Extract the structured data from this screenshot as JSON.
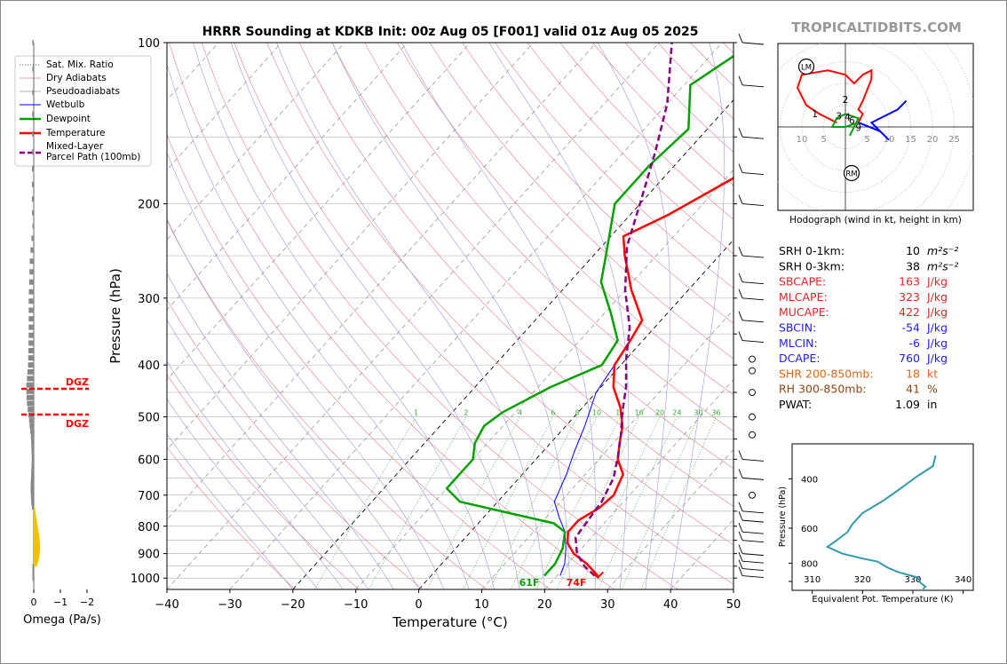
{
  "title": "HRRR Sounding at KDKB Init: 00z Aug 05 [F001] valid 01z Aug 05 2025",
  "watermark": "TROPICALTIDBITS.COM",
  "skewt": {
    "xlabel": "Temperature (°C)",
    "ylabel": "Pressure (hPa)",
    "pressure_ticks": [
      "100",
      "200",
      "300",
      "400",
      "500",
      "600",
      "700",
      "800",
      "900",
      "1000"
    ],
    "temp_ticks": [
      "−40",
      "−30",
      "−20",
      "−10",
      "0",
      "10",
      "20",
      "30",
      "40",
      "50"
    ],
    "mixing_ratio_labels": [
      "1",
      "2",
      "4",
      "6",
      "8",
      "10",
      "13",
      "16",
      "20",
      "24",
      "30",
      "36"
    ],
    "legend": [
      "Sat. Mix. Ratio",
      "Dry Adiabats",
      "Pseudoadiabats",
      "Wetbulb",
      "Dewpoint",
      "Temperature",
      "Mixed-Layer\nParcel Path (100mb)"
    ],
    "surface_dewpoint_label": "61F",
    "surface_temp_label": "74F",
    "colors": {
      "temperature": "#ff0000",
      "dewpoint": "#00a000",
      "wetbulb": "#0000ff",
      "parcel": "#800080",
      "dgz": "#ff0000"
    }
  },
  "omega": {
    "xlabel": "Omega (Pa/s)",
    "ticks": [
      "0",
      "−1",
      "−2"
    ],
    "dgz_label": "DGZ"
  },
  "hodograph": {
    "caption": "Hodograph (wind in kt, height in km)",
    "ring_labels_left": [
      "10",
      "5"
    ],
    "ring_labels_right": [
      "5",
      "10",
      "15",
      "20",
      "25"
    ],
    "height_labels": [
      "1",
      "2",
      "3",
      "4",
      "6",
      "9"
    ],
    "lm_label": "LM",
    "rm_label": "RM"
  },
  "parameters": [
    {
      "label": "SRH 0-1km:",
      "value": "10",
      "unit": "m²s⁻²",
      "color": "#000000"
    },
    {
      "label": "SRH 0-3km:",
      "value": "38",
      "unit": "m²s⁻²",
      "color": "#000000"
    },
    {
      "label": "SBCAPE:",
      "value": "163",
      "unit": "J/kg",
      "color": "#d62728"
    },
    {
      "label": "MLCAPE:",
      "value": "323",
      "unit": "J/kg",
      "color": "#d62728"
    },
    {
      "label": "MUCAPE:",
      "value": "422",
      "unit": "J/kg",
      "color": "#d62728"
    },
    {
      "label": "SBCIN:",
      "value": "-54",
      "unit": "J/kg",
      "color": "#1f1fd6"
    },
    {
      "label": "MLCIN:",
      "value": "-6",
      "unit": "J/kg",
      "color": "#1f1fd6"
    },
    {
      "label": "DCAPE:",
      "value": "760",
      "unit": "J/kg",
      "color": "#1f1fd6"
    },
    {
      "label": "SHR 200-850mb:",
      "value": "18",
      "unit": "kt",
      "color": "#d2691e"
    },
    {
      "label": "RH 300-850mb:",
      "value": "41",
      "unit": "%",
      "color": "#8b4513"
    },
    {
      "label": "PWAT:",
      "value": "1.09",
      "unit": "in",
      "color": "#000000"
    }
  ],
  "theta_e": {
    "xlabel": "Equivalent Pot. Temperature (K)",
    "ylabel": "Pressure (hPa)",
    "xticks": [
      "310",
      "320",
      "330",
      "340"
    ],
    "yticks": [
      "400",
      "600",
      "800"
    ],
    "color": "#3399aa"
  },
  "chart_data": [
    {
      "type": "line",
      "title": "HRRR Sounding at KDKB Init: 00z Aug 05 [F001] valid 01z Aug 05 2025",
      "xlabel": "Temperature (°C)",
      "ylabel": "Pressure (hPa)",
      "ylim": [
        1050,
        100
      ],
      "xlim": [
        -40,
        50
      ],
      "series": [
        {
          "name": "Temperature",
          "points": [
            [
              26.5,
              990
            ],
            [
              23,
              940
            ],
            [
              19.5,
              900
            ],
            [
              17,
              860
            ],
            [
              15.5,
              820
            ],
            [
              15.5,
              780
            ],
            [
              17,
              740
            ],
            [
              17.5,
              700
            ],
            [
              16,
              640
            ],
            [
              13,
              600
            ],
            [
              11,
              560
            ],
            [
              9,
              520
            ],
            [
              6,
              480
            ],
            [
              2,
              440
            ],
            [
              -1,
              400
            ],
            [
              -2,
              360
            ],
            [
              -3,
              330
            ],
            [
              -9,
              290
            ],
            [
              -15,
              250
            ],
            [
              -18,
              230
            ],
            [
              -14,
              210
            ],
            [
              -9,
              180
            ],
            [
              -6,
              160
            ],
            [
              -4,
              140
            ],
            [
              -3,
              120
            ],
            [
              -2,
              100
            ]
          ]
        },
        {
          "name": "Dewpoint",
          "points": [
            [
              18,
              990
            ],
            [
              18,
              940
            ],
            [
              17,
              880
            ],
            [
              15,
              820
            ],
            [
              12,
              790
            ],
            [
              -6,
              720
            ],
            [
              -10,
              680
            ],
            [
              -10,
              640
            ],
            [
              -10,
              600
            ],
            [
              -12,
              560
            ],
            [
              -13,
              520
            ],
            [
              -12,
              490
            ],
            [
              -8,
              440
            ],
            [
              -3,
              400
            ],
            [
              -4,
              360
            ],
            [
              -9,
              320
            ],
            [
              -15,
              280
            ],
            [
              -18,
              250
            ],
            [
              -24,
              200
            ],
            [
              -24,
              170
            ],
            [
              -23,
              145
            ],
            [
              -29,
              120
            ],
            [
              -25,
              100
            ]
          ]
        },
        {
          "name": "Wetbulb",
          "points": [
            [
              20.5,
              990
            ],
            [
              19.5,
              940
            ],
            [
              17.5,
              880
            ],
            [
              15,
              820
            ],
            [
              12,
              770
            ],
            [
              9,
              720
            ],
            [
              7,
              640
            ],
            [
              5,
              580
            ],
            [
              3,
              520
            ],
            [
              0,
              450
            ],
            [
              -1,
              400
            ],
            [
              -2,
              360
            ],
            [
              -3,
              330
            ],
            [
              -9,
              290
            ],
            [
              -15,
              250
            ],
            [
              -18,
              230
            ],
            [
              -14,
              210
            ],
            [
              -9,
              180
            ],
            [
              -6,
              160
            ],
            [
              -4,
              140
            ],
            [
              -3,
              120
            ],
            [
              -2,
              100
            ]
          ]
        },
        {
          "name": "Mixed-Layer Parcel Path (100mb)",
          "points": [
            [
              26,
              990
            ],
            [
              23,
              950
            ],
            [
              20,
              900
            ],
            [
              17.5,
              840
            ],
            [
              17,
              780
            ],
            [
              16.5,
              720
            ],
            [
              15,
              650
            ],
            [
              12.5,
              590
            ],
            [
              10,
              540
            ],
            [
              7,
              490
            ],
            [
              4,
              440
            ],
            [
              0,
              390
            ],
            [
              -4,
              340
            ],
            [
              -10,
              290
            ],
            [
              -16,
              240
            ],
            [
              -20,
              200
            ],
            [
              -25,
              160
            ],
            [
              -30,
              130
            ],
            [
              -38,
              100
            ]
          ]
        }
      ]
    },
    {
      "type": "line",
      "xlabel": "Equivalent Pot. Temperature (K)",
      "ylabel": "Pressure (hPa)",
      "ylim": [
        1000,
        300
      ],
      "xlim": [
        306,
        342
      ],
      "series": [
        {
          "name": "",
          "points": [
            [
              332,
              990
            ],
            [
              332.5,
              970
            ],
            [
              331.5,
              940
            ],
            [
              331,
              900
            ],
            [
              329,
              880
            ],
            [
              327,
              860
            ],
            [
              325,
              830
            ],
            [
              323,
              790
            ],
            [
              320,
              770
            ],
            [
              316,
              740
            ],
            [
              313,
              700
            ],
            [
              315,
              660
            ],
            [
              317,
              620
            ],
            [
              318,
              580
            ],
            [
              320,
              530
            ],
            [
              324,
              480
            ],
            [
              327,
              440
            ],
            [
              331,
              390
            ],
            [
              334,
              360
            ],
            [
              334.5,
              330
            ]
          ]
        }
      ]
    },
    {
      "type": "line",
      "xlabel": "Omega (Pa/s)",
      "series": [
        {
          "name": "",
          "points": [
            [
              -0.1,
              950
            ],
            [
              -0.3,
              920
            ],
            [
              -0.4,
              880
            ],
            [
              -0.35,
              840
            ],
            [
              -0.2,
              800
            ],
            [
              0.1,
              720
            ],
            [
              0.15,
              680
            ],
            [
              0.05,
              600
            ],
            [
              0.1,
              550
            ],
            [
              0.3,
              500
            ],
            [
              0.45,
              470
            ],
            [
              0.5,
              440
            ],
            [
              0.35,
              400
            ],
            [
              0.3,
              350
            ],
            [
              0.3,
              300
            ],
            [
              0.2,
              250
            ],
            [
              0.0,
              220
            ],
            [
              0.05,
              200
            ],
            [
              0.0,
              100
            ]
          ]
        }
      ]
    },
    {
      "type": "scatter",
      "title": "Hodograph (wind in kt, height in km)",
      "series": [
        {
          "name": "",
          "points": [
            [
              -2,
              1
            ],
            [
              -4,
              2
            ],
            [
              -6,
              3
            ],
            [
              -9,
              5
            ],
            [
              -11,
              9
            ],
            [
              -10,
              12
            ],
            [
              -4,
              13
            ],
            [
              0,
              12
            ],
            [
              2,
              10
            ],
            [
              4,
              12
            ],
            [
              6,
              13
            ],
            [
              6,
              11
            ],
            [
              4,
              6
            ],
            [
              3,
              4
            ],
            [
              4,
              3
            ],
            [
              3,
              1
            ]
          ]
        },
        {
          "name": "",
          "points": [
            [
              3,
              1
            ],
            [
              8,
              -1
            ],
            [
              10,
              -3
            ],
            [
              6,
              1
            ],
            [
              12,
              4
            ],
            [
              14,
              6
            ]
          ]
        },
        {
          "name": "",
          "points": [
            [
              3,
              1
            ],
            [
              0,
              0
            ],
            [
              -3,
              0
            ],
            [
              -2,
              2
            ],
            [
              0,
              3
            ],
            [
              3,
              2
            ],
            [
              1,
              -2
            ]
          ]
        }
      ]
    }
  ]
}
